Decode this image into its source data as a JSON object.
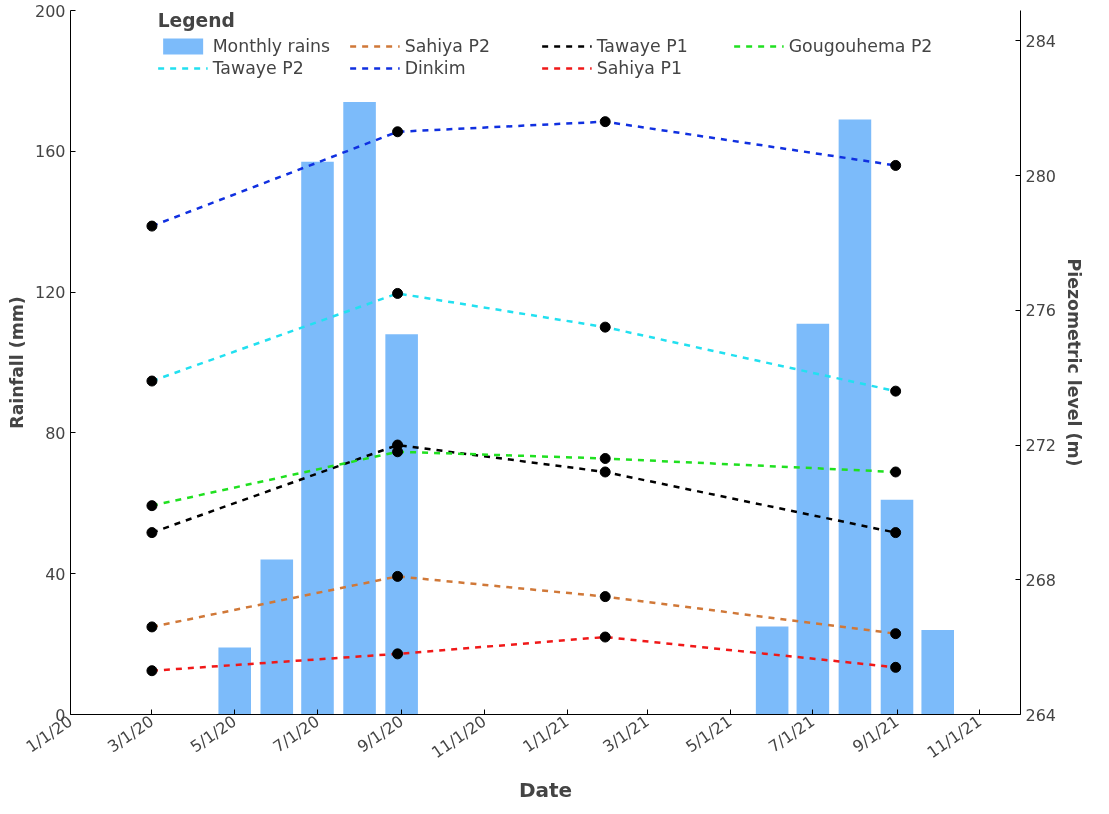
{
  "chart_data": {
    "type": "bar",
    "xlabel": "Date",
    "ylabel": "Rainfall (mm)",
    "y2label": "Piezometric level (m)",
    "legend_title": "Legend",
    "legend": "top",
    "x": [
      "2020-05-01",
      "2020-06-01",
      "2020-07-01",
      "2020-08-01",
      "2020-09-01",
      "2021-06-01",
      "2021-07-01",
      "2021-08-01",
      "2021-09-01",
      "2021-10-01"
    ],
    "xlim": [
      "2020-01-01",
      "2021-12-01"
    ],
    "xticks": [
      {
        "value": "2020-01-01",
        "label": "1/1/20"
      },
      {
        "value": "2020-03-01",
        "label": "3/1/20"
      },
      {
        "value": "2020-05-01",
        "label": "5/1/20"
      },
      {
        "value": "2020-07-01",
        "label": "7/1/20"
      },
      {
        "value": "2020-09-01",
        "label": "9/1/20"
      },
      {
        "value": "2020-11-01",
        "label": "11/1/20"
      },
      {
        "value": "2021-01-01",
        "label": "1/1/21"
      },
      {
        "value": "2021-03-01",
        "label": "3/1/21"
      },
      {
        "value": "2021-05-01",
        "label": "5/1/21"
      },
      {
        "value": "2021-07-01",
        "label": "7/1/21"
      },
      {
        "value": "2021-09-01",
        "label": "9/1/21"
      },
      {
        "value": "2021-11-01",
        "label": "11/1/21"
      }
    ],
    "ylim": [
      0,
      200
    ],
    "yticks": [
      0,
      40,
      80,
      120,
      160,
      200
    ],
    "y2lim": [
      264,
      284.9
    ],
    "y2ticks": [
      264,
      268,
      272,
      276,
      280,
      284
    ],
    "grid": false,
    "marker": "circle",
    "line_style": "dashed",
    "series": [
      {
        "name": "Monthly rains",
        "color": "#6eb4fa",
        "values": [
          19,
          44,
          157,
          174,
          108,
          25,
          111,
          169,
          61,
          24
        ]
      },
      {
        "name": "Tawaye P2",
        "type": "line",
        "axis": "y2",
        "color": "#22e0f0",
        "x": [
          "2020-03-01",
          "2020-08-29",
          "2021-01-29",
          "2021-08-31"
        ],
        "values": [
          273.9,
          276.5,
          275.5,
          273.6
        ]
      },
      {
        "name": "Sahiya P2",
        "type": "line",
        "axis": "y2",
        "color": "#d07838",
        "x": [
          "2020-03-01",
          "2020-08-29",
          "2021-01-29",
          "2021-08-31"
        ],
        "values": [
          266.6,
          268.1,
          267.5,
          266.4
        ]
      },
      {
        "name": "Dinkim",
        "type": "line",
        "axis": "y2",
        "color": "#1030e0",
        "x": [
          "2020-03-01",
          "2020-08-29",
          "2021-01-29",
          "2021-08-31"
        ],
        "values": [
          278.5,
          281.3,
          281.6,
          280.3
        ]
      },
      {
        "name": "Tawaye P1",
        "type": "line",
        "axis": "y2",
        "color": "#000000",
        "x": [
          "2020-03-01",
          "2020-08-29",
          "2021-01-29",
          "2021-08-31"
        ],
        "values": [
          269.4,
          272.0,
          271.2,
          269.4
        ]
      },
      {
        "name": "Sahiya P1",
        "type": "line",
        "axis": "y2",
        "color": "#f01818",
        "x": [
          "2020-03-01",
          "2020-08-29",
          "2021-01-29",
          "2021-08-31"
        ],
        "values": [
          265.3,
          265.8,
          266.3,
          265.4
        ]
      },
      {
        "name": "Gougouhema P2",
        "type": "line",
        "axis": "y2",
        "color": "#20e020",
        "x": [
          "2020-03-01",
          "2020-08-29",
          "2021-01-29",
          "2021-08-31"
        ],
        "values": [
          270.2,
          271.8,
          271.6,
          271.2
        ]
      }
    ]
  }
}
